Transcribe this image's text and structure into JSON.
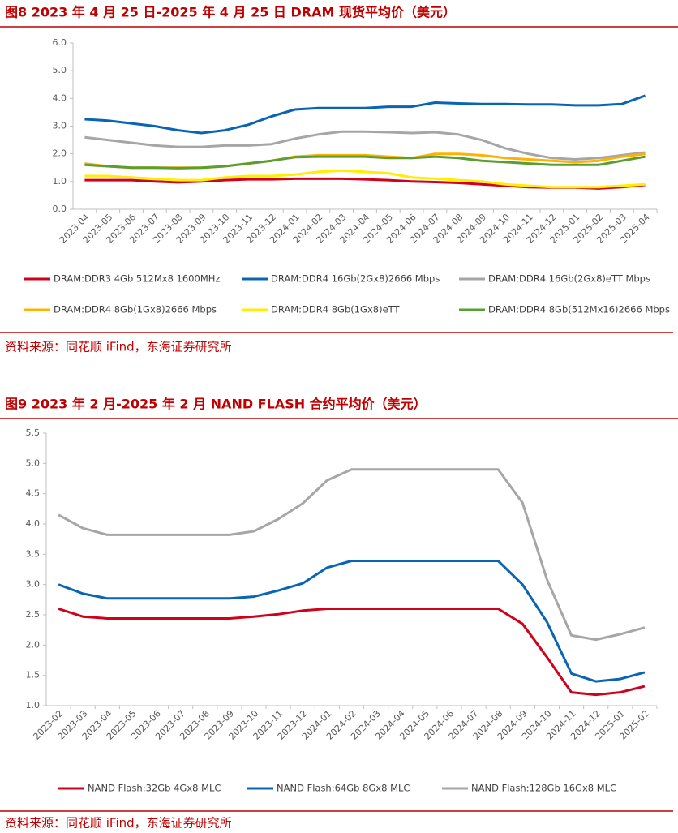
{
  "chart_data": [
    {
      "type": "line",
      "title": "图8  2023 年 4 月 25 日-2025 年 4 月 25 日 DRAM 现货平均价（美元）",
      "source": "资料来源：同花顺 iFind，东海证券研究所",
      "categories": [
        "2023-04",
        "2023-05",
        "2023-06",
        "2023-07",
        "2023-08",
        "2023-09",
        "2023-10",
        "2023-11",
        "2023-12",
        "2024-01",
        "2024-02",
        "2024-03",
        "2024-04",
        "2024-05",
        "2024-06",
        "2024-07",
        "2024-08",
        "2024-09",
        "2024-10",
        "2024-11",
        "2024-12",
        "2025-01",
        "2025-02",
        "2025-03",
        "2025-04"
      ],
      "ylim": [
        0,
        6
      ],
      "yticks": [
        {
          "value": 0,
          "label": "0.0"
        },
        {
          "value": 1,
          "label": "1.0"
        },
        {
          "value": 2,
          "label": "2.0"
        },
        {
          "value": 3,
          "label": "3.0"
        },
        {
          "value": 4,
          "label": "4.0"
        },
        {
          "value": 5,
          "label": "5.0"
        },
        {
          "value": 6,
          "label": "6.0"
        }
      ],
      "grid": false,
      "legend": "bottom",
      "series": [
        {
          "name": "DRAM:DDR3 4Gb 512Mx8 1600MHz",
          "color": "#d0021b",
          "values": [
            1.05,
            1.05,
            1.05,
            1.0,
            0.97,
            1.0,
            1.05,
            1.08,
            1.08,
            1.1,
            1.1,
            1.1,
            1.08,
            1.05,
            1.0,
            0.98,
            0.95,
            0.9,
            0.85,
            0.8,
            0.78,
            0.78,
            0.75,
            0.8,
            0.88
          ]
        },
        {
          "name": "DRAM:DDR4 16Gb(2Gx8)2666 Mbps",
          "color": "#0a64b4",
          "values": [
            3.25,
            3.2,
            3.1,
            3.0,
            2.85,
            2.75,
            2.85,
            3.05,
            3.35,
            3.6,
            3.65,
            3.65,
            3.65,
            3.7,
            3.7,
            3.85,
            3.82,
            3.8,
            3.8,
            3.78,
            3.78,
            3.75,
            3.75,
            3.8,
            4.1
          ]
        },
        {
          "name": "DRAM:DDR4 16Gb(2Gx8)eTT Mbps",
          "color": "#a6a6a6",
          "values": [
            2.6,
            2.5,
            2.4,
            2.3,
            2.25,
            2.25,
            2.3,
            2.3,
            2.35,
            2.55,
            2.7,
            2.8,
            2.8,
            2.78,
            2.75,
            2.78,
            2.7,
            2.5,
            2.2,
            2.0,
            1.85,
            1.8,
            1.85,
            1.95,
            2.05
          ]
        },
        {
          "name": "DRAM:DDR4 8Gb(1Gx8)2666 Mbps",
          "color": "#ffb000",
          "values": [
            1.65,
            1.55,
            1.5,
            1.5,
            1.5,
            1.5,
            1.55,
            1.65,
            1.75,
            1.9,
            1.95,
            1.95,
            1.95,
            1.9,
            1.85,
            2.0,
            2.0,
            1.95,
            1.85,
            1.8,
            1.75,
            1.7,
            1.75,
            1.9,
            2.0
          ]
        },
        {
          "name": "DRAM:DDR4 8Gb(1Gx8)eTT",
          "color": "#ffee00",
          "values": [
            1.2,
            1.2,
            1.15,
            1.1,
            1.05,
            1.05,
            1.15,
            1.2,
            1.2,
            1.25,
            1.35,
            1.4,
            1.35,
            1.3,
            1.15,
            1.1,
            1.05,
            1.0,
            0.9,
            0.85,
            0.8,
            0.8,
            0.8,
            0.85,
            0.9
          ]
        },
        {
          "name": "DRAM:DDR4 8Gb(512Mx16)2666 Mbps",
          "color": "#5a9e32",
          "values": [
            1.6,
            1.55,
            1.5,
            1.5,
            1.48,
            1.5,
            1.55,
            1.65,
            1.75,
            1.88,
            1.9,
            1.9,
            1.9,
            1.85,
            1.85,
            1.9,
            1.85,
            1.75,
            1.7,
            1.65,
            1.6,
            1.6,
            1.6,
            1.75,
            1.9
          ]
        }
      ]
    },
    {
      "type": "line",
      "title": "图9  2023 年 2 月-2025 年 2 月 NAND FLASH 合约平均价（美元）",
      "source": "资料来源：同花顺 iFind，东海证券研究所",
      "categories": [
        "2023-02",
        "2023-03",
        "2023-04",
        "2023-05",
        "2023-06",
        "2023-07",
        "2023-08",
        "2023-09",
        "2023-10",
        "2023-11",
        "2023-12",
        "2024-01",
        "2024-02",
        "2024-03",
        "2024-04",
        "2024-05",
        "2024-06",
        "2024-07",
        "2024-08",
        "2024-09",
        "2024-10",
        "2024-11",
        "2024-12",
        "2025-01",
        "2025-02"
      ],
      "ylim": [
        1,
        5.5
      ],
      "yticks": [
        {
          "value": 1,
          "label": "1.0"
        },
        {
          "value": 1.5,
          "label": "1.5"
        },
        {
          "value": 2,
          "label": "2.0"
        },
        {
          "value": 2.5,
          "label": "2.5"
        },
        {
          "value": 3,
          "label": "3.0"
        },
        {
          "value": 3.5,
          "label": "3.5"
        },
        {
          "value": 4,
          "label": "4.0"
        },
        {
          "value": 4.5,
          "label": "4.5"
        },
        {
          "value": 5,
          "label": "5.0"
        },
        {
          "value": 5.5,
          "label": "5.5"
        }
      ],
      "grid": false,
      "legend": "bottom",
      "series": [
        {
          "name": "NAND Flash:32Gb 4Gx8 MLC",
          "color": "#d0021b",
          "values": [
            2.6,
            2.47,
            2.44,
            2.44,
            2.44,
            2.44,
            2.44,
            2.44,
            2.47,
            2.51,
            2.57,
            2.6,
            2.6,
            2.6,
            2.6,
            2.6,
            2.6,
            2.6,
            2.6,
            2.35,
            1.8,
            1.22,
            1.18,
            1.22,
            1.32
          ]
        },
        {
          "name": "NAND Flash:64Gb 8Gx8 MLC",
          "color": "#0a64b4",
          "values": [
            3.0,
            2.85,
            2.77,
            2.77,
            2.77,
            2.77,
            2.77,
            2.77,
            2.8,
            2.9,
            3.02,
            3.28,
            3.39,
            3.39,
            3.39,
            3.39,
            3.39,
            3.39,
            3.39,
            3.0,
            2.38,
            1.53,
            1.4,
            1.44,
            1.55
          ]
        },
        {
          "name": "NAND Flash:128Gb 16Gx8 MLC",
          "color": "#a6a6a6",
          "values": [
            4.15,
            3.93,
            3.82,
            3.82,
            3.82,
            3.82,
            3.82,
            3.82,
            3.88,
            4.08,
            4.34,
            4.72,
            4.9,
            4.9,
            4.9,
            4.9,
            4.9,
            4.9,
            4.9,
            4.35,
            3.08,
            2.16,
            2.09,
            2.18,
            2.29
          ]
        }
      ]
    }
  ]
}
